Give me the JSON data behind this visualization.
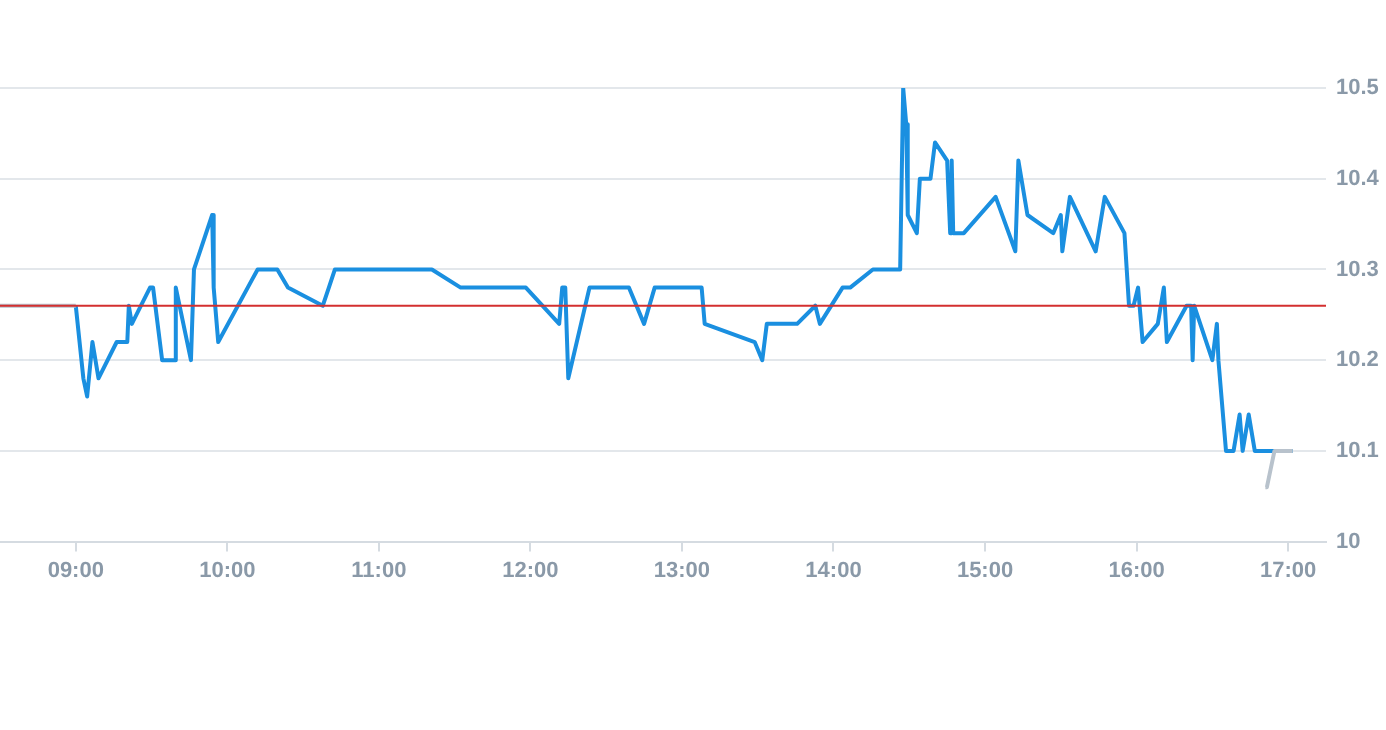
{
  "chart_data": {
    "type": "line",
    "xlim": [
      8.5,
      17.25
    ],
    "ylim": [
      10,
      10.5
    ],
    "xticks": [
      {
        "value": 9,
        "label": "09:00"
      },
      {
        "value": 10,
        "label": "10:00"
      },
      {
        "value": 11,
        "label": "11:00"
      },
      {
        "value": 12,
        "label": "12:00"
      },
      {
        "value": 13,
        "label": "13:00"
      },
      {
        "value": 14,
        "label": "14:00"
      },
      {
        "value": 15,
        "label": "15:00"
      },
      {
        "value": 16,
        "label": "16:00"
      },
      {
        "value": 17,
        "label": "17:00"
      }
    ],
    "yticks": [
      {
        "value": 10,
        "label": "10"
      },
      10.1,
      10.2,
      10.3,
      10.4,
      10.5
    ],
    "grid": "y",
    "legend": false,
    "marker": "none",
    "line_style": "solid",
    "ref_lines": [
      {
        "axis": "y",
        "value": 10.26,
        "color": "#d32f2f"
      }
    ],
    "series": [
      {
        "color": "#1a8fe0",
        "x": [
          9.0,
          9.05,
          9.075,
          9.11,
          9.15,
          9.27,
          9.34,
          9.35,
          9.37,
          9.43,
          9.49,
          9.51,
          9.57,
          9.65,
          9.66,
          9.76,
          9.78,
          9.9,
          9.91,
          9.94,
          10.2,
          10.33,
          10.4,
          10.63,
          10.67,
          10.71,
          11.35,
          11.54,
          11.97,
          12.19,
          12.21,
          12.23,
          12.25,
          12.39,
          12.65,
          12.75,
          12.82,
          13.13,
          13.15,
          13.48,
          13.53,
          13.56,
          13.76,
          13.88,
          13.91,
          14.06,
          14.11,
          14.26,
          14.42,
          14.44,
          14.46,
          14.48,
          14.49,
          14.55,
          14.57,
          14.64,
          14.67,
          14.75,
          14.77,
          14.78,
          14.79,
          14.86,
          15.07,
          15.2,
          15.22,
          15.28,
          15.45,
          15.5,
          15.51,
          15.56,
          15.73,
          15.79,
          15.92,
          15.95,
          15.98,
          16.01,
          16.04,
          16.14,
          16.18,
          16.2,
          16.33,
          16.36,
          16.37,
          16.38,
          16.5,
          16.53,
          16.54,
          16.59,
          16.64,
          16.68,
          16.7,
          16.74,
          16.78,
          17.03
        ],
        "values": [
          10.26,
          10.18,
          10.16,
          10.22,
          10.18,
          10.22,
          10.22,
          10.26,
          10.24,
          10.26,
          10.28,
          10.28,
          10.2,
          10.2,
          10.28,
          10.2,
          10.3,
          10.36,
          10.28,
          10.22,
          10.3,
          10.3,
          10.28,
          10.26,
          10.28,
          10.3,
          10.3,
          10.28,
          10.28,
          10.24,
          10.28,
          10.28,
          10.18,
          10.28,
          10.28,
          10.24,
          10.28,
          10.28,
          10.24,
          10.22,
          10.2,
          10.24,
          10.24,
          10.26,
          10.24,
          10.28,
          10.28,
          10.3,
          10.3,
          10.3,
          10.5,
          10.46,
          10.36,
          10.34,
          10.4,
          10.4,
          10.44,
          10.42,
          10.34,
          10.42,
          10.34,
          10.34,
          10.38,
          10.32,
          10.42,
          10.36,
          10.34,
          10.36,
          10.32,
          10.38,
          10.32,
          10.38,
          10.34,
          10.26,
          10.26,
          10.28,
          10.22,
          10.24,
          10.28,
          10.22,
          10.26,
          10.26,
          10.2,
          10.26,
          10.2,
          10.24,
          10.2,
          10.1,
          10.1,
          10.14,
          10.1,
          10.14,
          10.1,
          10.1
        ]
      },
      {
        "color": "#b8c2cc",
        "x": [
          8.5,
          9.0,
          9.01,
          16.85,
          16.86,
          16.91,
          17.03
        ],
        "values": [
          10.26,
          10.26,
          null,
          10.06,
          10.06,
          10.1,
          10.1
        ]
      }
    ]
  }
}
